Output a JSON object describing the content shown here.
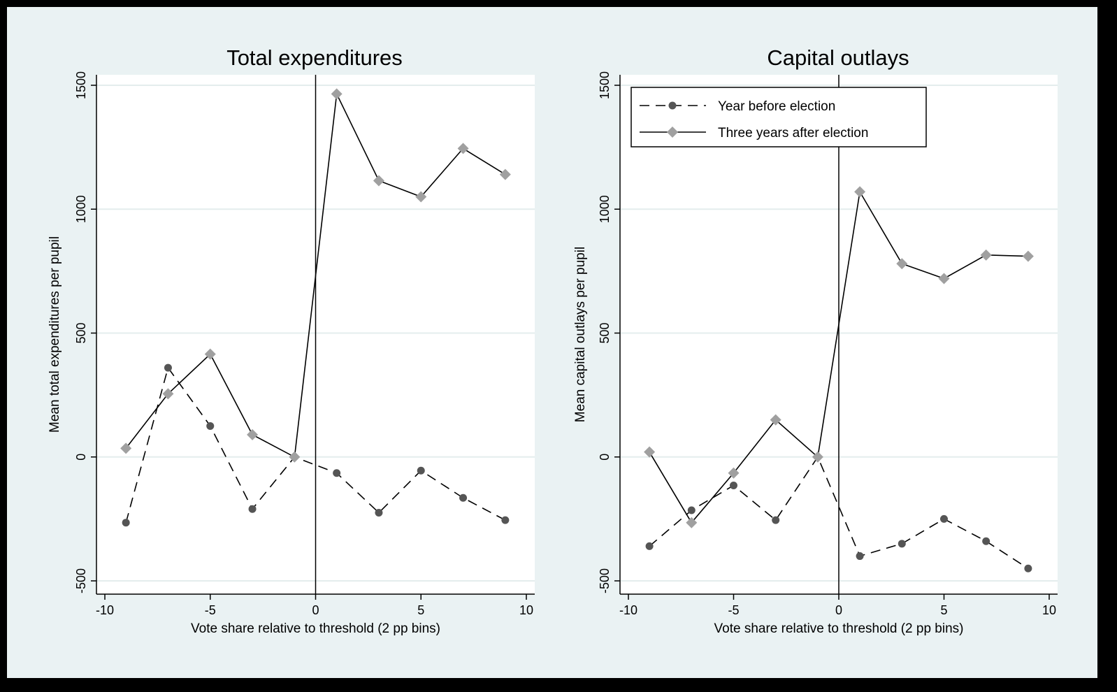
{
  "chart_data": [
    {
      "type": "line",
      "title": "Total expenditures",
      "xlabel": "Vote share relative to threshold (2 pp bins)",
      "ylabel": "Mean total expenditures per pupil",
      "xlim": [
        -10,
        10
      ],
      "ylim": [
        -500,
        1500
      ],
      "xticks": [
        -10,
        -5,
        0,
        5,
        10
      ],
      "yticks": [
        -500,
        0,
        500,
        1000,
        1500
      ],
      "grid": true,
      "reference_line_x": 0,
      "x": [
        -9,
        -7,
        -5,
        -3,
        -1,
        1,
        3,
        5,
        7,
        9
      ],
      "series": [
        {
          "name": "Year before election",
          "style": "dashed",
          "marker": "circle",
          "color": "#555555",
          "values": [
            -265,
            360,
            125,
            -210,
            0,
            -65,
            -225,
            -55,
            -165,
            -255
          ]
        },
        {
          "name": "Three years after election",
          "style": "solid",
          "marker": "diamond",
          "color": "#a0a0a0",
          "values": [
            35,
            255,
            415,
            90,
            0,
            1465,
            1115,
            1050,
            1245,
            1140
          ]
        }
      ]
    },
    {
      "type": "line",
      "title": "Capital outlays",
      "xlabel": "Vote share relative to threshold (2 pp bins)",
      "ylabel": "Mean capital outlays per pupil",
      "xlim": [
        -10,
        10
      ],
      "ylim": [
        -500,
        1500
      ],
      "xticks": [
        -10,
        -5,
        0,
        5,
        10
      ],
      "yticks": [
        -500,
        0,
        500,
        1000,
        1500
      ],
      "grid": true,
      "reference_line_x": 0,
      "legend_position": "top-left",
      "x": [
        -9,
        -7,
        -5,
        -3,
        -1,
        1,
        3,
        5,
        7,
        9
      ],
      "series": [
        {
          "name": "Year before election",
          "style": "dashed",
          "marker": "circle",
          "color": "#555555",
          "values": [
            -360,
            -215,
            -115,
            -255,
            0,
            -400,
            -350,
            -250,
            -340,
            -450
          ]
        },
        {
          "name": "Three years after election",
          "style": "solid",
          "marker": "diamond",
          "color": "#a0a0a0",
          "values": [
            20,
            -265,
            -65,
            150,
            0,
            1070,
            780,
            720,
            815,
            810
          ]
        }
      ]
    }
  ]
}
